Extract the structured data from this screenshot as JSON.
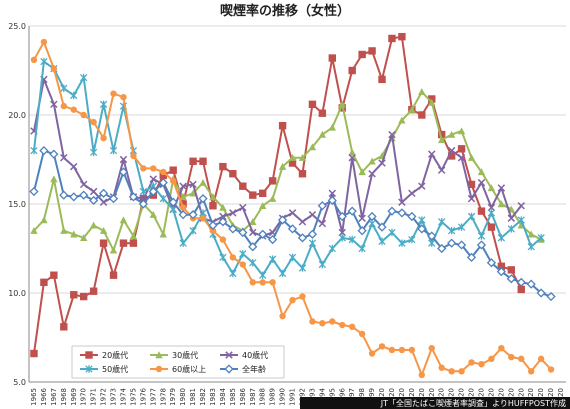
{
  "chart_data": {
    "type": "line",
    "title": "喫煙率の推移（女性）",
    "xlabel": "",
    "ylabel": "",
    "ylim": [
      5.0,
      25.0
    ],
    "yticks": [
      "5.0",
      "10.0",
      "15.0",
      "20.0",
      "25.0"
    ],
    "grid": "horizontal",
    "legend_position": "bottom-center",
    "x": [
      1965,
      1966,
      1967,
      1968,
      1969,
      1970,
      1971,
      1972,
      1973,
      1974,
      1975,
      1976,
      1977,
      1978,
      1979,
      1980,
      1981,
      1982,
      1983,
      1984,
      1985,
      1986,
      1987,
      1988,
      1989,
      1990,
      1991,
      1992,
      1993,
      1994,
      1995,
      1996,
      1997,
      1998,
      1999,
      2000,
      2001,
      2002,
      2003,
      2004,
      2005,
      2006,
      2007,
      2008,
      2009,
      2010,
      2011,
      2012,
      2013,
      2014,
      2015,
      2016,
      2017,
      2018
    ],
    "x_tick_labels": [
      "1965",
      "1966",
      "1967",
      "1968",
      "1969",
      "1970",
      "1971",
      "1972",
      "1973",
      "1974",
      "1975",
      "1976",
      "1977",
      "1978",
      "1979",
      "1980",
      "1981",
      "1982",
      "1983",
      "1984",
      "1985",
      "1986",
      "1987",
      "1988",
      "1989",
      "1990",
      "1991",
      "1992",
      "1993",
      "1994",
      "1995",
      "1996",
      "1997",
      "1998",
      "1999",
      "20",
      "20",
      "20",
      "20",
      "20",
      "20",
      "20",
      "20",
      "20",
      "20",
      "20",
      "20",
      "20",
      "20",
      "20",
      "20",
      "20",
      "20",
      "20"
    ],
    "series": [
      {
        "name": "20歳代",
        "color": "#c0504d",
        "marker": "square",
        "values": [
          6.6,
          10.6,
          11.0,
          8.1,
          9.9,
          9.8,
          10.1,
          12.8,
          11.0,
          12.8,
          12.8,
          15.3,
          15.5,
          16.6,
          16.9,
          15.0,
          17.4,
          17.4,
          14.9,
          17.1,
          16.7,
          16.0,
          15.5,
          15.6,
          16.3,
          19.4,
          17.3,
          16.7,
          20.6,
          20.1,
          23.2,
          20.4,
          22.5,
          23.4,
          23.6,
          22.0,
          24.3,
          24.4,
          20.3,
          20.0,
          20.9,
          18.9,
          17.7,
          18.1,
          16.1,
          14.6,
          13.7,
          11.5,
          11.3,
          10.2,
          null,
          null,
          null,
          null
        ]
      },
      {
        "name": "30歳代",
        "color": "#9bbb59",
        "marker": "triangle",
        "values": [
          13.5,
          14.1,
          16.4,
          13.5,
          13.3,
          13.1,
          13.8,
          13.5,
          12.4,
          14.1,
          13.2,
          15.0,
          14.4,
          13.3,
          16.4,
          15.4,
          15.6,
          16.2,
          15.4,
          14.8,
          13.8,
          13.5,
          14.0,
          14.9,
          15.3,
          17.1,
          17.6,
          17.6,
          18.2,
          18.9,
          19.3,
          20.6,
          17.9,
          16.8,
          17.4,
          17.7,
          18.7,
          19.7,
          20.3,
          21.3,
          20.7,
          18.6,
          18.9,
          19.1,
          17.6,
          16.8,
          15.9,
          15.0,
          14.7,
          13.8,
          13.3,
          13.0,
          null,
          null
        ]
      },
      {
        "name": "40歳代",
        "color": "#8064a2",
        "marker": "x",
        "values": [
          19.1,
          22.0,
          20.6,
          17.6,
          17.1,
          16.1,
          15.7,
          15.1,
          15.4,
          17.5,
          15.4,
          15.3,
          16.4,
          16.1,
          14.7,
          16.0,
          16.1,
          14.2,
          14.0,
          14.3,
          14.5,
          14.8,
          13.4,
          13.2,
          13.4,
          14.2,
          14.5,
          14.0,
          14.4,
          13.9,
          15.6,
          13.4,
          17.6,
          14.2,
          16.7,
          17.3,
          18.9,
          15.1,
          15.6,
          16.0,
          17.8,
          16.9,
          18.0,
          17.6,
          15.3,
          16.2,
          14.8,
          15.9,
          14.2,
          14.9,
          null,
          null,
          null,
          null
        ]
      },
      {
        "name": "50歳代",
        "color": "#4bacc6",
        "marker": "asterisk",
        "values": [
          18.0,
          23.0,
          22.6,
          21.5,
          21.1,
          22.1,
          17.9,
          20.6,
          18.0,
          20.5,
          18.0,
          15.7,
          16.0,
          15.3,
          14.7,
          12.8,
          13.5,
          14.5,
          13.3,
          12.0,
          11.1,
          12.2,
          11.7,
          11.0,
          11.9,
          11.1,
          12.0,
          11.4,
          12.8,
          11.6,
          12.5,
          13.1,
          13.0,
          12.5,
          13.9,
          12.9,
          13.4,
          12.8,
          13.0,
          14.1,
          12.8,
          14.0,
          13.5,
          13.7,
          14.3,
          13.2,
          14.5,
          13.1,
          13.6,
          14.1,
          12.6,
          13.1,
          null,
          null
        ]
      },
      {
        "name": "60歳以上",
        "color": "#f79646",
        "marker": "circle",
        "values": [
          23.1,
          24.1,
          22.6,
          20.5,
          20.3,
          20.0,
          19.6,
          18.7,
          21.2,
          21.0,
          17.7,
          17.0,
          17.0,
          16.8,
          16.3,
          14.8,
          14.2,
          14.2,
          13.5,
          13.0,
          12.0,
          11.6,
          10.6,
          10.6,
          10.6,
          8.7,
          9.6,
          9.8,
          8.4,
          8.3,
          8.4,
          8.2,
          8.1,
          7.7,
          6.6,
          7.0,
          6.8,
          6.8,
          6.8,
          5.4,
          6.9,
          5.8,
          5.6,
          5.6,
          6.1,
          6.0,
          6.3,
          6.9,
          6.4,
          6.3,
          5.6,
          6.3,
          5.7,
          null
        ]
      },
      {
        "name": "全年齢",
        "color": "#4f81bd",
        "marker": "diamond",
        "values": [
          15.7,
          18.0,
          17.8,
          15.5,
          15.4,
          15.5,
          15.2,
          15.6,
          15.3,
          16.8,
          15.4,
          15.0,
          15.7,
          16.2,
          15.1,
          14.4,
          14.4,
          15.3,
          13.8,
          14.0,
          13.6,
          13.4,
          12.6,
          13.3,
          13.0,
          14.1,
          13.6,
          13.1,
          13.3,
          14.9,
          15.2,
          14.3,
          14.6,
          13.5,
          14.3,
          13.7,
          14.6,
          14.5,
          14.3,
          13.6,
          13.2,
          12.5,
          12.8,
          12.7,
          12.0,
          12.7,
          11.7,
          11.2,
          10.8,
          10.6,
          10.5,
          10.0,
          9.8,
          null
        ]
      }
    ]
  },
  "credit": "JT「全国たばこ喫煙者率調査」よりHUFFPOST作成"
}
